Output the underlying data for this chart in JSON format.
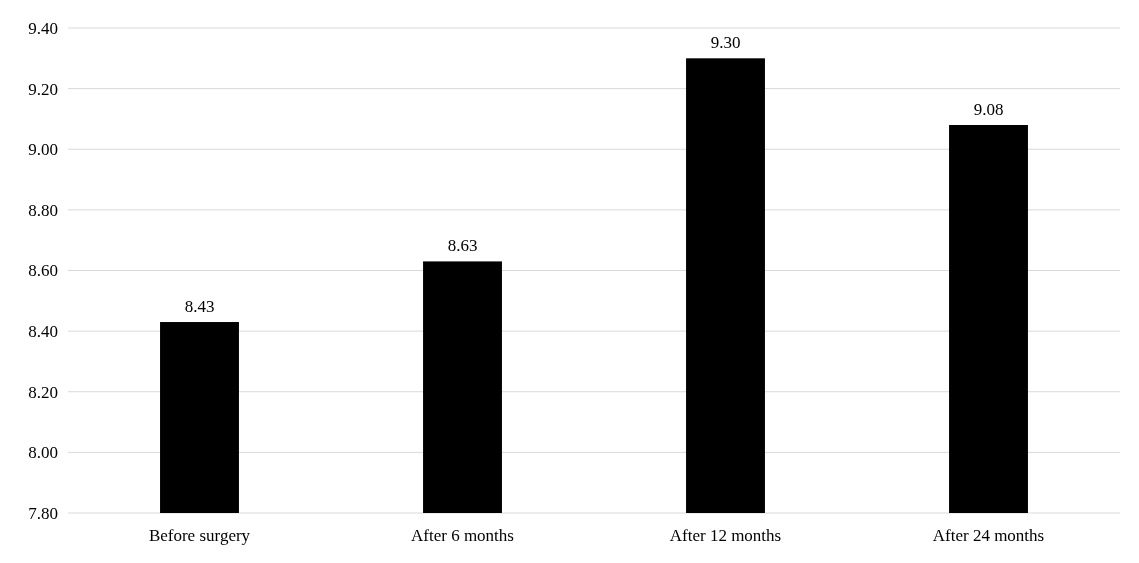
{
  "chart_data": {
    "type": "bar",
    "categories": [
      "Before surgery",
      "After 6 months",
      "After 12 months",
      "After 24 months"
    ],
    "values": [
      8.43,
      8.63,
      9.3,
      9.08
    ],
    "value_labels": [
      "8.43",
      "8.63",
      "9.30",
      "9.08"
    ],
    "color": "#000000",
    "ylim": [
      7.8,
      9.4
    ],
    "yticks": [
      {
        "value": 7.8,
        "label": "7.80"
      },
      {
        "value": 8.0,
        "label": "8.00"
      },
      {
        "value": 8.2,
        "label": "8.20"
      },
      {
        "value": 8.4,
        "label": "8.40"
      },
      {
        "value": 8.6,
        "label": "8.60"
      },
      {
        "value": 8.8,
        "label": "8.80"
      },
      {
        "value": 9.0,
        "label": "9.00"
      },
      {
        "value": 9.2,
        "label": "9.20"
      },
      {
        "value": 9.4,
        "label": "9.40"
      }
    ],
    "grid": "y"
  }
}
